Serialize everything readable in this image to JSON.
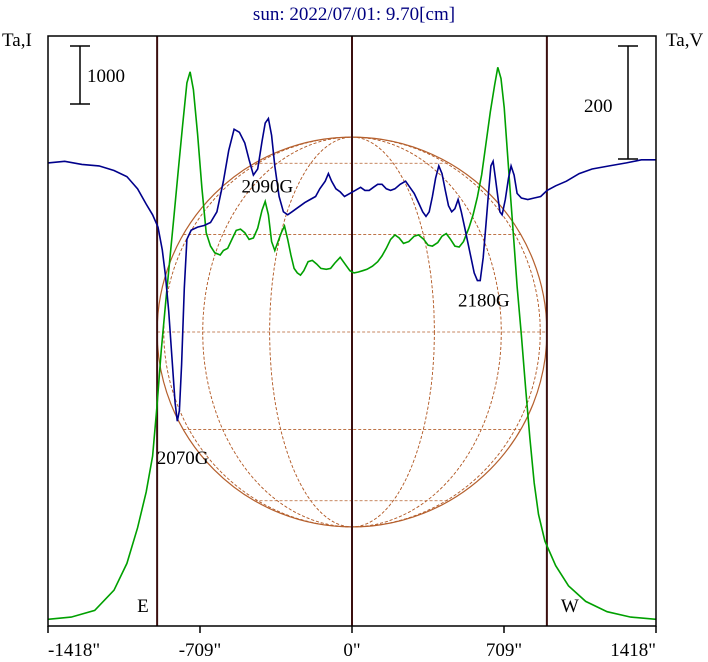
{
  "chart_data": {
    "type": "line",
    "title": "sun: 2022/07/01: 9.70[cm]",
    "left_axis_label": "Ta,I",
    "right_axis_label": "Ta,V",
    "x_unit": "arcsec",
    "x_ticks": [
      {
        "value": -1418,
        "label": "-1418\""
      },
      {
        "value": -709,
        "label": "-709\""
      },
      {
        "value": 0,
        "label": "0\""
      },
      {
        "value": 709,
        "label": "709\""
      },
      {
        "value": 1418,
        "label": "1418\""
      }
    ],
    "xlim": [
      -1418,
      1418
    ],
    "scale_bars": [
      {
        "side": "left",
        "label": "1000",
        "axis": "Ta,I"
      },
      {
        "side": "right",
        "label": "200",
        "axis": "Ta,V"
      }
    ],
    "limb_markers": [
      {
        "label": "E",
        "value": -909
      },
      {
        "label": "W",
        "value": 909
      }
    ],
    "center_line": 0,
    "disk": {
      "radius_arcsec": 909,
      "color": "#b5602e"
    },
    "series": [
      {
        "id": "I",
        "color": "#00a000",
        "points": [
          [
            -1418,
            -305
          ],
          [
            -1310,
            -300
          ],
          [
            -1200,
            -285
          ],
          [
            -1110,
            -240
          ],
          [
            -1050,
            -180
          ],
          [
            -1000,
            -100
          ],
          [
            -960,
            -20
          ],
          [
            -930,
            60
          ],
          [
            -910,
            170
          ],
          [
            -890,
            295
          ],
          [
            -870,
            400
          ],
          [
            -850,
            500
          ],
          [
            -830,
            600
          ],
          [
            -810,
            700
          ],
          [
            -790,
            800
          ],
          [
            -770,
            895
          ],
          [
            -755,
            920
          ],
          [
            -740,
            880
          ],
          [
            -720,
            780
          ],
          [
            -700,
            660
          ],
          [
            -680,
            560
          ],
          [
            -660,
            530
          ],
          [
            -640,
            515
          ],
          [
            -615,
            510
          ],
          [
            -600,
            520
          ],
          [
            -580,
            525
          ],
          [
            -560,
            545
          ],
          [
            -540,
            565
          ],
          [
            -520,
            568
          ],
          [
            -500,
            560
          ],
          [
            -480,
            545
          ],
          [
            -460,
            548
          ],
          [
            -440,
            570
          ],
          [
            -420,
            610
          ],
          [
            -405,
            630
          ],
          [
            -390,
            600
          ],
          [
            -375,
            540
          ],
          [
            -360,
            520
          ],
          [
            -345,
            540
          ],
          [
            -330,
            560
          ],
          [
            -315,
            575
          ],
          [
            -300,
            545
          ],
          [
            -285,
            510
          ],
          [
            -270,
            480
          ],
          [
            -255,
            470
          ],
          [
            -240,
            465
          ],
          [
            -225,
            475
          ],
          [
            -205,
            495
          ],
          [
            -185,
            498
          ],
          [
            -165,
            490
          ],
          [
            -145,
            480
          ],
          [
            -120,
            478
          ],
          [
            -100,
            480
          ],
          [
            -80,
            492
          ],
          [
            -55,
            505
          ],
          [
            -30,
            488
          ],
          [
            -10,
            475
          ],
          [
            10,
            470
          ],
          [
            30,
            472
          ],
          [
            50,
            475
          ],
          [
            70,
            478
          ],
          [
            95,
            485
          ],
          [
            120,
            495
          ],
          [
            140,
            508
          ],
          [
            160,
            525
          ],
          [
            180,
            545
          ],
          [
            200,
            555
          ],
          [
            220,
            548
          ],
          [
            240,
            536
          ],
          [
            265,
            540
          ],
          [
            290,
            552
          ],
          [
            310,
            555
          ],
          [
            335,
            545
          ],
          [
            355,
            532
          ],
          [
            375,
            530
          ],
          [
            400,
            538
          ],
          [
            420,
            552
          ],
          [
            440,
            558
          ],
          [
            460,
            545
          ],
          [
            480,
            530
          ],
          [
            500,
            528
          ],
          [
            520,
            540
          ],
          [
            545,
            570
          ],
          [
            565,
            600
          ],
          [
            585,
            640
          ],
          [
            605,
            690
          ],
          [
            625,
            760
          ],
          [
            645,
            830
          ],
          [
            665,
            890
          ],
          [
            680,
            930
          ],
          [
            695,
            905
          ],
          [
            710,
            840
          ],
          [
            725,
            740
          ],
          [
            740,
            640
          ],
          [
            755,
            540
          ],
          [
            770,
            440
          ],
          [
            790,
            330
          ],
          [
            810,
            210
          ],
          [
            830,
            100
          ],
          [
            850,
            0
          ],
          [
            870,
            -70
          ],
          [
            900,
            -130
          ],
          [
            950,
            -185
          ],
          [
            1010,
            -230
          ],
          [
            1090,
            -265
          ],
          [
            1190,
            -288
          ],
          [
            1300,
            -300
          ],
          [
            1418,
            -305
          ]
        ]
      },
      {
        "id": "V",
        "color": "#00008b",
        "points": [
          [
            -1418,
            102
          ],
          [
            -1340,
            103
          ],
          [
            -1260,
            101
          ],
          [
            -1180,
            100
          ],
          [
            -1110,
            97
          ],
          [
            -1050,
            93
          ],
          [
            -1000,
            85
          ],
          [
            -960,
            75
          ],
          [
            -930,
            68
          ],
          [
            -905,
            60
          ],
          [
            -885,
            45
          ],
          [
            -870,
            28
          ],
          [
            -855,
            5
          ],
          [
            -840,
            -25
          ],
          [
            -825,
            -55
          ],
          [
            -815,
            -67
          ],
          [
            -805,
            -60
          ],
          [
            -795,
            -30
          ],
          [
            -782,
            20
          ],
          [
            -770,
            52
          ],
          [
            -750,
            58
          ],
          [
            -720,
            60
          ],
          [
            -690,
            61
          ],
          [
            -660,
            63
          ],
          [
            -630,
            70
          ],
          [
            -600,
            90
          ],
          [
            -575,
            110
          ],
          [
            -550,
            124
          ],
          [
            -525,
            122
          ],
          [
            -500,
            115
          ],
          [
            -480,
            104
          ],
          [
            -460,
            94
          ],
          [
            -440,
            98
          ],
          [
            -420,
            116
          ],
          [
            -405,
            128
          ],
          [
            -390,
            131
          ],
          [
            -375,
            120
          ],
          [
            -360,
            100
          ],
          [
            -340,
            80
          ],
          [
            -320,
            70
          ],
          [
            -300,
            68
          ],
          [
            -280,
            70
          ],
          [
            -260,
            72
          ],
          [
            -240,
            74
          ],
          [
            -220,
            76
          ],
          [
            -195,
            78
          ],
          [
            -170,
            80
          ],
          [
            -150,
            85
          ],
          [
            -125,
            90
          ],
          [
            -110,
            95
          ],
          [
            -95,
            90
          ],
          [
            -75,
            85
          ],
          [
            -55,
            83
          ],
          [
            -35,
            80
          ],
          [
            -10,
            82
          ],
          [
            15,
            84
          ],
          [
            40,
            86
          ],
          [
            60,
            84
          ],
          [
            80,
            84
          ],
          [
            100,
            86
          ],
          [
            120,
            88
          ],
          [
            140,
            88
          ],
          [
            160,
            85
          ],
          [
            180,
            84
          ],
          [
            200,
            85
          ],
          [
            225,
            88
          ],
          [
            250,
            90
          ],
          [
            270,
            86
          ],
          [
            290,
            82
          ],
          [
            310,
            76
          ],
          [
            330,
            70
          ],
          [
            345,
            67
          ],
          [
            360,
            70
          ],
          [
            375,
            80
          ],
          [
            390,
            92
          ],
          [
            405,
            100
          ],
          [
            420,
            95
          ],
          [
            435,
            84
          ],
          [
            450,
            74
          ],
          [
            465,
            70
          ],
          [
            480,
            72
          ],
          [
            495,
            78
          ],
          [
            510,
            70
          ],
          [
            525,
            60
          ],
          [
            540,
            50
          ],
          [
            555,
            40
          ],
          [
            570,
            30
          ],
          [
            585,
            25
          ],
          [
            598,
            25
          ],
          [
            612,
            40
          ],
          [
            625,
            62
          ],
          [
            637,
            83
          ],
          [
            648,
            100
          ],
          [
            658,
            103
          ],
          [
            668,
            93
          ],
          [
            680,
            80
          ],
          [
            690,
            70
          ],
          [
            700,
            68
          ],
          [
            715,
            78
          ],
          [
            730,
            92
          ],
          [
            742,
            100
          ],
          [
            756,
            94
          ],
          [
            770,
            82
          ],
          [
            790,
            79
          ],
          [
            820,
            78
          ],
          [
            850,
            79
          ],
          [
            880,
            80
          ],
          [
            910,
            84
          ],
          [
            950,
            87
          ],
          [
            1000,
            90
          ],
          [
            1060,
            95
          ],
          [
            1120,
            98
          ],
          [
            1200,
            100
          ],
          [
            1280,
            102
          ],
          [
            1350,
            104
          ],
          [
            1418,
            104
          ]
        ]
      }
    ],
    "annotations": [
      {
        "text": "2090G",
        "x": -395,
        "y": 650,
        "axis": "I"
      },
      {
        "text": "2070G",
        "x": -790,
        "y": -95,
        "axis": "V"
      },
      {
        "text": "2180G",
        "x": 615,
        "y": 8,
        "axis": "V"
      }
    ],
    "ylim_I": [
      -320,
      1000
    ],
    "ylim_V": [
      -201,
      185
    ],
    "colors": {
      "frame": "#000000",
      "limb_lines": "#3b0f0f",
      "title": "#000080",
      "disk_grid": "#b5602e"
    }
  }
}
